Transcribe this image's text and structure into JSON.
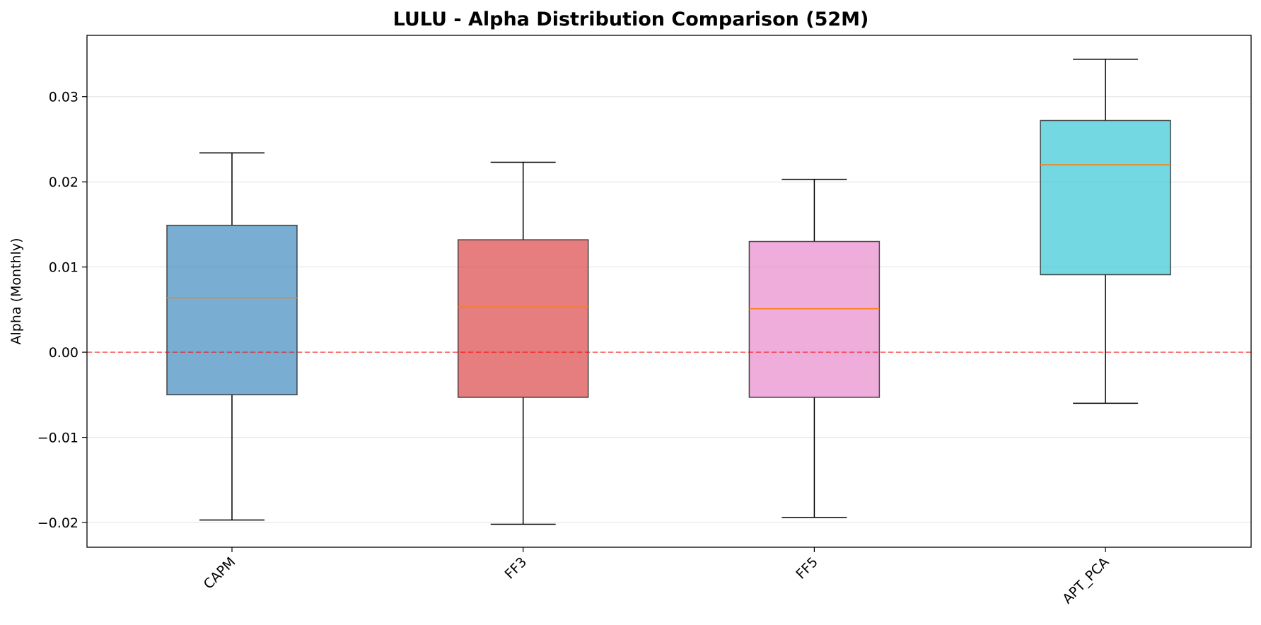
{
  "chart_data": {
    "type": "box",
    "title": "LULU - Alpha Distribution Comparison (52M)",
    "xlabel": "",
    "ylabel": "Alpha (Monthly)",
    "ylim": [
      -0.0229,
      0.0372
    ],
    "yticks": [
      -0.02,
      -0.01,
      0.0,
      0.01,
      0.02,
      0.03
    ],
    "ytick_labels": [
      "−0.02",
      "−0.01",
      "0.00",
      "0.01",
      "0.02",
      "0.03"
    ],
    "grid": "horizontal",
    "reference_line": {
      "y": 0.0,
      "color": "#ff0000",
      "style": "dashed"
    },
    "median_color": "#ff7f0e",
    "categories": [
      "CAPM",
      "FF3",
      "FF5",
      "APT_PCA"
    ],
    "boxes": [
      {
        "category": "CAPM",
        "whisker_low": -0.0197,
        "q1": -0.005,
        "median": 0.0064,
        "q3": 0.0149,
        "whisker_high": 0.0234,
        "color": "#1f77b4"
      },
      {
        "category": "FF3",
        "whisker_low": -0.0202,
        "q1": -0.0053,
        "median": 0.0053,
        "q3": 0.0132,
        "whisker_high": 0.0223,
        "color": "#d62728"
      },
      {
        "category": "FF5",
        "whisker_low": -0.0194,
        "q1": -0.0053,
        "median": 0.0051,
        "q3": 0.013,
        "whisker_high": 0.0203,
        "color": "#e377c2"
      },
      {
        "category": "APT_PCA",
        "whisker_low": -0.006,
        "q1": 0.0091,
        "median": 0.022,
        "q3": 0.0272,
        "whisker_high": 0.0344,
        "color": "#17becf"
      }
    ]
  }
}
